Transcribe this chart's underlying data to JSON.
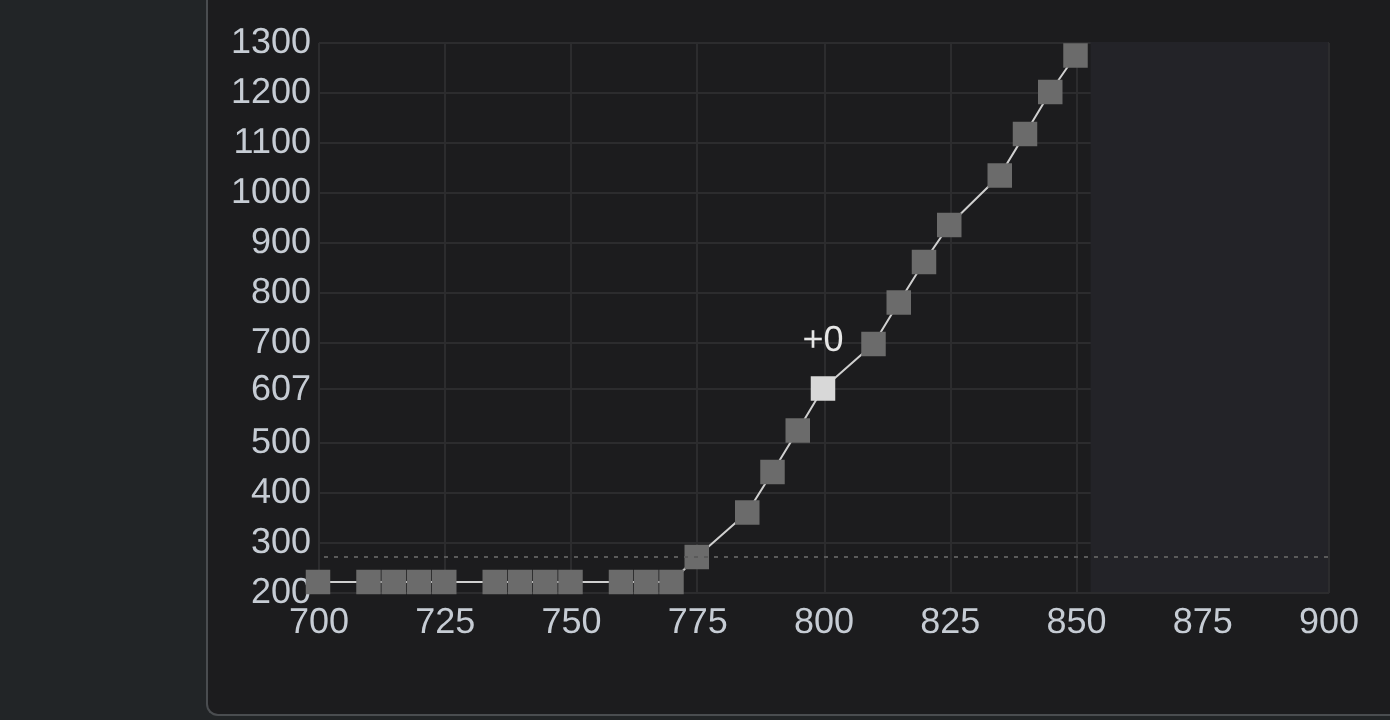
{
  "chart_data": {
    "type": "line",
    "x": [
      700,
      710,
      715,
      720,
      725,
      735,
      740,
      745,
      750,
      760,
      765,
      770,
      775,
      785,
      790,
      795,
      800,
      810,
      815,
      820,
      825,
      835,
      840,
      845,
      850
    ],
    "series": [
      {
        "color": "#d0d0d0",
        "colors": [
          "#6b6b6b",
          "#6b6b6b",
          "#6b6b6b",
          "#6b6b6b",
          "#6b6b6b",
          "#6b6b6b",
          "#6b6b6b",
          "#6b6b6b",
          "#6b6b6b",
          "#6b6b6b",
          "#6b6b6b",
          "#6b6b6b",
          "#6b6b6b",
          "#6b6b6b",
          "#6b6b6b",
          "#6b6b6b",
          "#d8d8d8",
          "#6b6b6b",
          "#6b6b6b",
          "#6b6b6b",
          "#6b6b6b",
          "#6b6b6b",
          "#6b6b6b",
          "#6b6b6b",
          "#6b6b6b"
        ],
        "values": [
          220,
          220,
          220,
          220,
          220,
          220,
          220,
          220,
          220,
          220,
          220,
          220,
          270,
          359,
          440,
          523,
          607,
          696,
          779,
          860,
          934,
          1033,
          1116,
          1200,
          1273
        ]
      }
    ],
    "xlim": [
      700,
      900
    ],
    "xticks": [
      700,
      725,
      750,
      775,
      800,
      825,
      850,
      875,
      900
    ],
    "ylim": [
      200,
      1300
    ],
    "yticks": [
      200,
      300,
      400,
      500,
      607,
      700,
      800,
      900,
      1000,
      1100,
      1200,
      1300
    ],
    "grid": true,
    "marker": "square",
    "line_style": "solid",
    "ref_lines": [
      {
        "axis": "y",
        "value": 270,
        "color": "#5a5a5a",
        "line_style": "dotted"
      }
    ],
    "bands": [
      {
        "axis": "x",
        "from": 853,
        "to": 900,
        "color": "#232328"
      }
    ],
    "annotations": [
      {
        "text": "+0",
        "x": 800,
        "y": 607
      }
    ]
  }
}
